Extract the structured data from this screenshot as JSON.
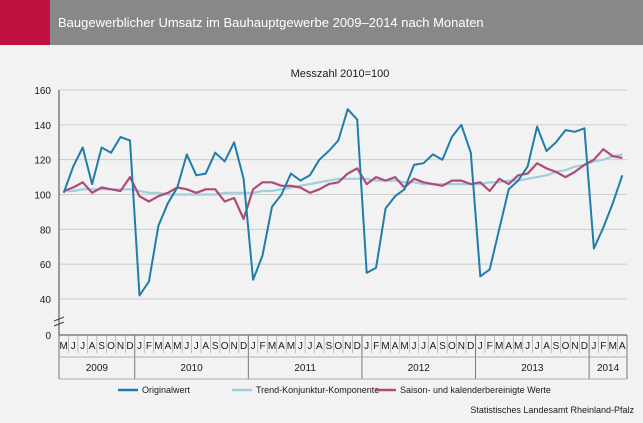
{
  "header": {
    "title": "Baugewerblicher Umsatz im Bauhauptgewerbe 2009–2014 nach Monaten"
  },
  "colors": {
    "accent": "#c0103f",
    "header_bg": "#888888",
    "original": "#1f7ea8",
    "trend": "#9ecfe0",
    "seasonal": "#b04a7a"
  },
  "source": "Statistisches Landesamt Rheinland-Pfalz",
  "chart_data": {
    "type": "line",
    "title": "Messzahl 2010=100",
    "ylim": [
      0,
      160
    ],
    "y_ticks": [
      0,
      40,
      60,
      80,
      100,
      120,
      140,
      160
    ],
    "axis_break": true,
    "grid": true,
    "legend_position": "bottom",
    "month_labels": [
      "M",
      "J",
      "J",
      "A",
      "S",
      "O",
      "N",
      "D",
      "J",
      "F",
      "M",
      "A",
      "M",
      "J",
      "J",
      "A",
      "S",
      "O",
      "N",
      "D",
      "J",
      "F",
      "M",
      "A",
      "M",
      "J",
      "J",
      "A",
      "S",
      "O",
      "N",
      "D",
      "J",
      "F",
      "M",
      "A",
      "M",
      "J",
      "J",
      "A",
      "S",
      "O",
      "N",
      "D",
      "J",
      "F",
      "M",
      "A",
      "M",
      "J",
      "J",
      "A",
      "S",
      "O",
      "N",
      "D",
      "J",
      "F",
      "M",
      "A"
    ],
    "years": [
      {
        "label": "2009",
        "start": 0,
        "count": 8
      },
      {
        "label": "2010",
        "start": 8,
        "count": 12
      },
      {
        "label": "2011",
        "start": 20,
        "count": 12
      },
      {
        "label": "2012",
        "start": 32,
        "count": 12
      },
      {
        "label": "2013",
        "start": 44,
        "count": 12
      },
      {
        "label": "2014",
        "start": 56,
        "count": 4
      }
    ],
    "series": [
      {
        "name": "Originalwert",
        "key": "original",
        "values": [
          101,
          116,
          127,
          106,
          127,
          124,
          133,
          131,
          42,
          50,
          82,
          95,
          104,
          123,
          111,
          112,
          124,
          119,
          130,
          109,
          51,
          65,
          93,
          100,
          112,
          108,
          111,
          120,
          125,
          131,
          149,
          143,
          55,
          58,
          92,
          99,
          103,
          117,
          118,
          123,
          120,
          133,
          140,
          124,
          53,
          57,
          80,
          103,
          108,
          116,
          139,
          125,
          130,
          137,
          136,
          138,
          69,
          81,
          95,
          111
        ]
      },
      {
        "name": "Trend-Konjunktur-Komponente",
        "key": "trend",
        "values": [
          102,
          102,
          103,
          103,
          103,
          103,
          103,
          103,
          102,
          101,
          101,
          100,
          100,
          100,
          100,
          100,
          100,
          101,
          101,
          101,
          101,
          102,
          102,
          103,
          104,
          105,
          106,
          107,
          108,
          109,
          109,
          109,
          109,
          108,
          108,
          108,
          107,
          107,
          106,
          106,
          106,
          106,
          106,
          106,
          106,
          107,
          107,
          108,
          108,
          109,
          110,
          111,
          113,
          114,
          116,
          117,
          119,
          120,
          122,
          123
        ]
      },
      {
        "name": "Saison- und kalenderbereinigte Werte",
        "key": "seasonal",
        "values": [
          102,
          104,
          107,
          101,
          104,
          103,
          102,
          110,
          99,
          96,
          99,
          101,
          104,
          103,
          101,
          103,
          103,
          96,
          98,
          86,
          103,
          107,
          107,
          105,
          105,
          104,
          101,
          103,
          106,
          107,
          112,
          115,
          106,
          110,
          108,
          110,
          104,
          109,
          107,
          106,
          105,
          108,
          108,
          106,
          107,
          102,
          109,
          106,
          111,
          112,
          118,
          115,
          113,
          110,
          113,
          117,
          120,
          126,
          122,
          121
        ]
      }
    ]
  }
}
